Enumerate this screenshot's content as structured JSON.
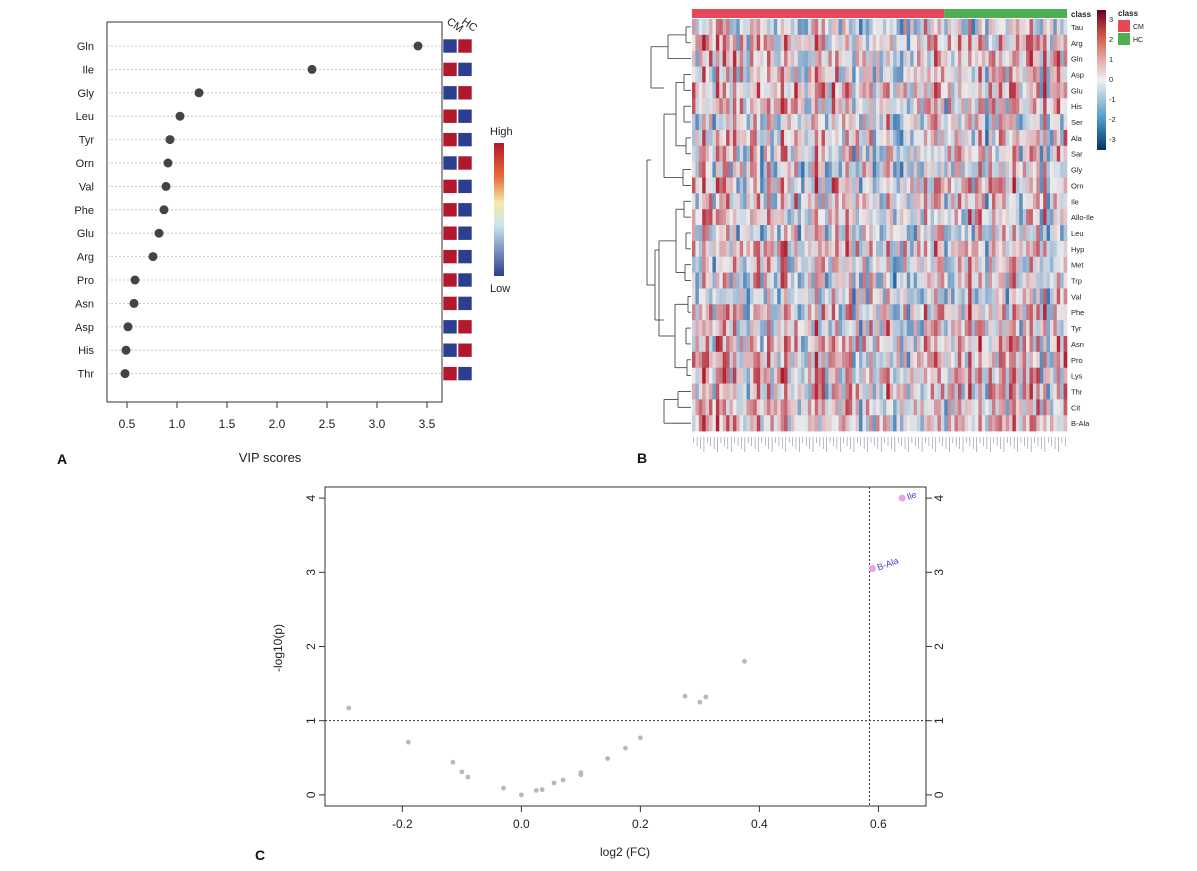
{
  "panel_labels": {
    "a": "A",
    "b": "B",
    "c": "C"
  },
  "colors": {
    "cm": "#e8475a",
    "hc": "#4caf50",
    "high": "#b2182b",
    "low": "#2c3e8f",
    "heat_mid": "#eaeaea",
    "point": "#444444",
    "volcano_sig": "#e9a3e8",
    "volcano_ns": "#b8b8b8",
    "volcano_label": "#4b3bd1"
  },
  "panel_a": {
    "xlabel": "VIP scores",
    "xticks": [
      "0.5",
      "1.0",
      "1.5",
      "2.0",
      "2.5",
      "3.0",
      "3.5"
    ],
    "group_labels": [
      "CM",
      "HC"
    ],
    "legend_high": "High",
    "legend_low": "Low"
  },
  "panel_b": {
    "class_label": "class",
    "legend_title": "class",
    "legend_entries": [
      "CM",
      "HC"
    ],
    "scale_ticks": [
      "3",
      "2",
      "1",
      "0",
      "-1",
      "-2",
      "-3"
    ],
    "rows": [
      "Tau",
      "Arg",
      "Gln",
      "Asp",
      "Glu",
      "His",
      "Ser",
      "Ala",
      "Sar",
      "Gly",
      "Orn",
      "Ile",
      "Allo-Ile",
      "Leu",
      "Hyp",
      "Met",
      "Trp",
      "Val",
      "Phe",
      "Tyr",
      "Asn",
      "Pro",
      "Lys",
      "Thr",
      "Cit",
      "B-Ala"
    ]
  },
  "panel_c": {
    "xlabel": "log2 (FC)",
    "ylabel": "-log10(p)",
    "xticks": [
      "-0.2",
      "0.0",
      "0.2",
      "0.4",
      "0.6"
    ],
    "yticks": [
      "0",
      "1",
      "2",
      "3",
      "4"
    ],
    "labels": [
      "Ile",
      "B-Ala"
    ]
  },
  "chart_data": [
    {
      "type": "scatter",
      "xlabel": "VIP scores",
      "xlim": [
        0.3,
        3.65
      ],
      "categories": [
        "Gln",
        "Ile",
        "Gly",
        "Leu",
        "Tyr",
        "Orn",
        "Val",
        "Phe",
        "Glu",
        "Arg",
        "Pro",
        "Asn",
        "Asp",
        "His",
        "Thr"
      ],
      "values": [
        3.41,
        2.35,
        1.22,
        1.03,
        0.93,
        0.91,
        0.89,
        0.87,
        0.82,
        0.76,
        0.58,
        0.57,
        0.51,
        0.49,
        0.48
      ],
      "groups": [
        "CM",
        "HC"
      ],
      "group_levels": [
        [
          "low",
          "high"
        ],
        [
          "high",
          "low"
        ],
        [
          "low",
          "high"
        ],
        [
          "high",
          "low"
        ],
        [
          "high",
          "low"
        ],
        [
          "low",
          "high"
        ],
        [
          "high",
          "low"
        ],
        [
          "high",
          "low"
        ],
        [
          "high",
          "low"
        ],
        [
          "high",
          "low"
        ],
        [
          "high",
          "low"
        ],
        [
          "high",
          "low"
        ],
        [
          "low",
          "high"
        ],
        [
          "low",
          "high"
        ],
        [
          "high",
          "low"
        ]
      ],
      "grid": true
    },
    {
      "type": "heatmap",
      "rows": [
        "Tau",
        "Arg",
        "Gln",
        "Asp",
        "Glu",
        "His",
        "Ser",
        "Ala",
        "Sar",
        "Gly",
        "Orn",
        "Ile",
        "Allo-Ile",
        "Leu",
        "Hyp",
        "Met",
        "Trp",
        "Val",
        "Phe",
        "Tyr",
        "Asn",
        "Pro",
        "Lys",
        "Thr",
        "Cit",
        "B-Ala"
      ],
      "classes": [
        "CM",
        "HC"
      ],
      "class_fraction": [
        0.67,
        0.33
      ],
      "color_range": [
        -3,
        3
      ],
      "dendrogram": "rows"
    },
    {
      "type": "scatter",
      "xlabel": "log2 (FC)",
      "ylabel": "-log10(p)",
      "xlim": [
        -0.33,
        0.68
      ],
      "ylim": [
        -0.15,
        4.15
      ],
      "threshold_y": 1,
      "threshold_x": 0.585,
      "points": [
        {
          "x": -0.29,
          "y": 1.17
        },
        {
          "x": -0.19,
          "y": 0.71
        },
        {
          "x": -0.115,
          "y": 0.44
        },
        {
          "x": -0.1,
          "y": 0.31
        },
        {
          "x": -0.09,
          "y": 0.24
        },
        {
          "x": -0.03,
          "y": 0.09
        },
        {
          "x": 0.0,
          "y": 0.0
        },
        {
          "x": 0.025,
          "y": 0.06
        },
        {
          "x": 0.035,
          "y": 0.07
        },
        {
          "x": 0.055,
          "y": 0.16
        },
        {
          "x": 0.07,
          "y": 0.2
        },
        {
          "x": 0.1,
          "y": 0.27
        },
        {
          "x": 0.1,
          "y": 0.3
        },
        {
          "x": 0.145,
          "y": 0.49
        },
        {
          "x": 0.175,
          "y": 0.63
        },
        {
          "x": 0.2,
          "y": 0.77
        },
        {
          "x": 0.275,
          "y": 1.33
        },
        {
          "x": 0.3,
          "y": 1.25
        },
        {
          "x": 0.31,
          "y": 1.32
        },
        {
          "x": 0.375,
          "y": 1.8
        },
        {
          "x": 0.59,
          "y": 3.05,
          "label": "B-Ala",
          "significant": true
        },
        {
          "x": 0.64,
          "y": 4.0,
          "label": "Ile",
          "significant": true
        }
      ]
    }
  ]
}
